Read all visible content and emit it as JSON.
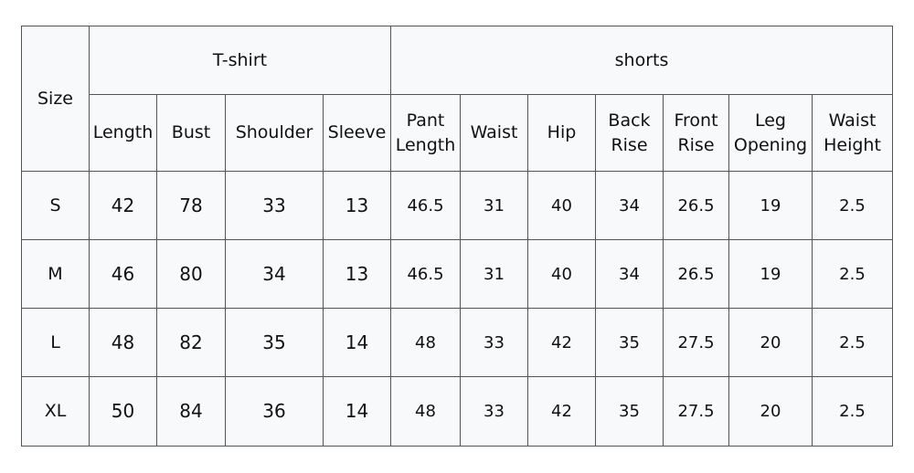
{
  "table": {
    "size_header": "Size",
    "groups": [
      "T-shirt",
      "shorts"
    ],
    "columns": [
      [
        "Length"
      ],
      [
        "Bust"
      ],
      [
        "Shoulder"
      ],
      [
        "Sleeve"
      ],
      [
        "Pant",
        "Length"
      ],
      [
        "Waist"
      ],
      [
        "Hip"
      ],
      [
        "Back",
        "Rise"
      ],
      [
        "Front",
        "Rise"
      ],
      [
        "Leg",
        "Opening"
      ],
      [
        "Waist",
        "Height"
      ]
    ],
    "rows": [
      {
        "size": "S",
        "values": [
          "42",
          "78",
          "33",
          "13",
          "46.5",
          "31",
          "40",
          "34",
          "26.5",
          "19",
          "2.5"
        ]
      },
      {
        "size": "M",
        "values": [
          "46",
          "80",
          "34",
          "13",
          "46.5",
          "31",
          "40",
          "34",
          "26.5",
          "19",
          "2.5"
        ]
      },
      {
        "size": "L",
        "values": [
          "48",
          "82",
          "35",
          "14",
          "48",
          "33",
          "42",
          "35",
          "27.5",
          "20",
          "2.5"
        ]
      },
      {
        "size": "XL",
        "values": [
          "50",
          "84",
          "36",
          "14",
          "48",
          "33",
          "42",
          "35",
          "27.5",
          "20",
          "2.5"
        ]
      }
    ]
  }
}
